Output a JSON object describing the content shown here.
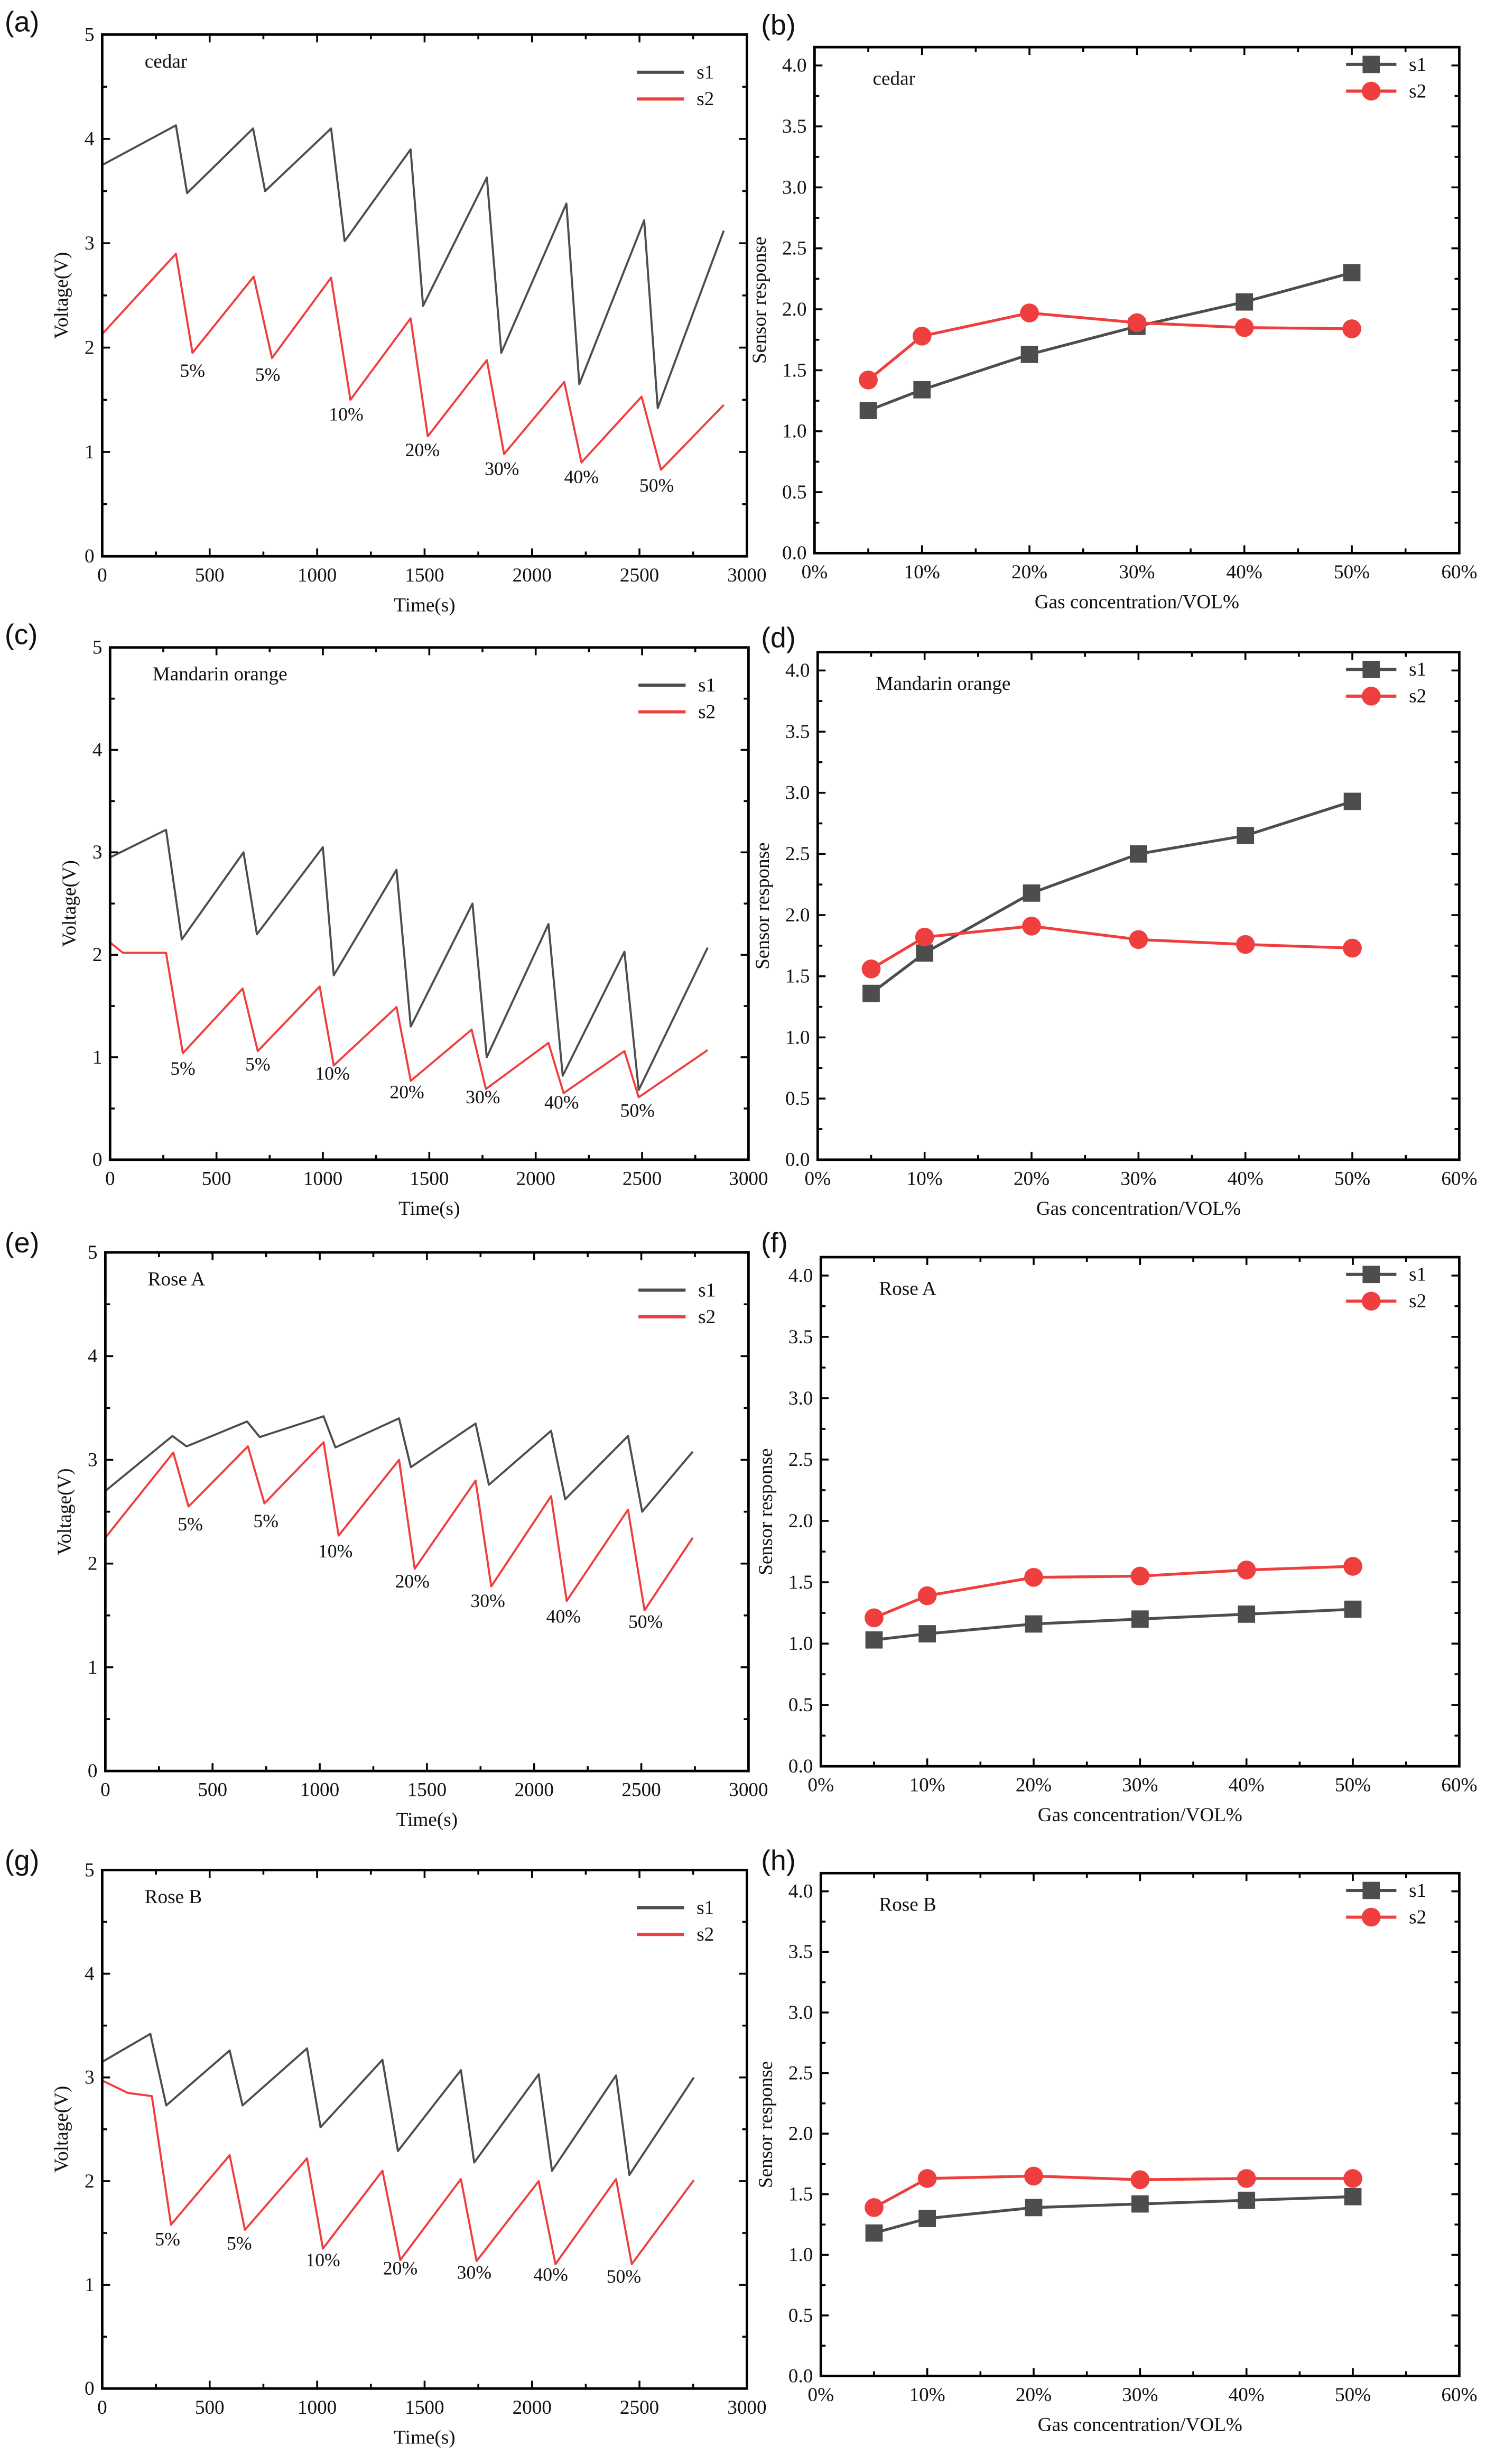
{
  "chart_data": [
    {
      "panel": "(a)",
      "type": "line",
      "annotation": "cedar",
      "xlabel": "Time(s)",
      "ylabel": "Voltage(V)",
      "xlim": [
        0,
        3000
      ],
      "ylim": [
        0,
        5
      ],
      "xticks": [
        "0",
        "500",
        "1000",
        "1500",
        "2000",
        "2500",
        "3000"
      ],
      "yticks": [
        "0",
        "1",
        "2",
        "3",
        "4",
        "5"
      ],
      "legend": "top-right",
      "series": [
        {
          "name": "s1",
          "color": "#4d4d4d",
          "points": [
            [
              0,
              3.75
            ],
            [
              343,
              4.13
            ],
            [
              395,
              3.48
            ],
            [
              702,
              4.1
            ],
            [
              758,
              3.5
            ],
            [
              1065,
              4.1
            ],
            [
              1128,
              3.02
            ],
            [
              1435,
              3.9
            ],
            [
              1493,
              2.4
            ],
            [
              1790,
              3.63
            ],
            [
              1857,
              1.95
            ],
            [
              2160,
              3.38
            ],
            [
              2220,
              1.65
            ],
            [
              2522,
              3.22
            ],
            [
              2585,
              1.42
            ],
            [
              2892,
              3.12
            ]
          ]
        },
        {
          "name": "s2",
          "color": "#ef3e3e",
          "points": [
            [
              0,
              2.13
            ],
            [
              343,
              2.9
            ],
            [
              420,
              1.95
            ],
            [
              705,
              2.68
            ],
            [
              790,
              1.9
            ],
            [
              1065,
              2.67
            ],
            [
              1155,
              1.5
            ],
            [
              1435,
              2.28
            ],
            [
              1515,
              1.15
            ],
            [
              1790,
              1.88
            ],
            [
              1870,
              0.98
            ],
            [
              2150,
              1.67
            ],
            [
              2230,
              0.9
            ],
            [
              2510,
              1.53
            ],
            [
              2600,
              0.83
            ],
            [
              2892,
              1.45
            ]
          ]
        }
      ],
      "labels": [
        {
          "text": "5%",
          "x": 420,
          "y": 1.72
        },
        {
          "text": "5%",
          "x": 770,
          "y": 1.68
        },
        {
          "text": "10%",
          "x": 1135,
          "y": 1.3
        },
        {
          "text": "20%",
          "x": 1490,
          "y": 0.96
        },
        {
          "text": "30%",
          "x": 1860,
          "y": 0.78
        },
        {
          "text": "40%",
          "x": 2230,
          "y": 0.7
        },
        {
          "text": "50%",
          "x": 2580,
          "y": 0.62
        }
      ]
    },
    {
      "panel": "(b)",
      "type": "line",
      "annotation": "cedar",
      "xlabel": "Gas concentration/VOL%",
      "ylabel": "Sensor response",
      "xlim": [
        0,
        60
      ],
      "ylim": [
        0,
        4.15
      ],
      "xticks": [
        "0%",
        "10%",
        "20%",
        "30%",
        "40%",
        "50%",
        "60%"
      ],
      "yticks": [
        "0.0",
        "0.5",
        "1.0",
        "1.5",
        "2.0",
        "2.5",
        "3.0",
        "3.5",
        "4.0"
      ],
      "legend": "top-right",
      "x": [
        5,
        10,
        20,
        30,
        40,
        50
      ],
      "series": [
        {
          "name": "s1",
          "color": "#4d4d4d",
          "marker": "square",
          "values": [
            1.17,
            1.34,
            1.63,
            1.86,
            2.06,
            2.3
          ]
        },
        {
          "name": "s2",
          "color": "#ef3e3e",
          "marker": "circle",
          "values": [
            1.42,
            1.78,
            1.97,
            1.89,
            1.85,
            1.84
          ]
        }
      ]
    },
    {
      "panel": "(c)",
      "type": "line",
      "annotation": "Mandarin orange",
      "xlabel": "Time(s)",
      "ylabel": "Voltage(V)",
      "xlim": [
        0,
        3000
      ],
      "ylim": [
        0,
        5
      ],
      "xticks": [
        "0",
        "500",
        "1000",
        "1500",
        "2000",
        "2500",
        "3000"
      ],
      "yticks": [
        "0",
        "1",
        "2",
        "3",
        "4",
        "5"
      ],
      "legend": "top-right",
      "series": [
        {
          "name": "s1",
          "color": "#4d4d4d",
          "points": [
            [
              0,
              2.95
            ],
            [
              263,
              3.22
            ],
            [
              337,
              2.15
            ],
            [
              627,
              3.0
            ],
            [
              690,
              2.2
            ],
            [
              1000,
              3.05
            ],
            [
              1051,
              1.8
            ],
            [
              1346,
              2.83
            ],
            [
              1413,
              1.3
            ],
            [
              1703,
              2.5
            ],
            [
              1770,
              1.0
            ],
            [
              2060,
              2.3
            ],
            [
              2127,
              0.82
            ],
            [
              2417,
              2.03
            ],
            [
              2484,
              0.68
            ],
            [
              2808,
              2.07
            ]
          ]
        },
        {
          "name": "s2",
          "color": "#ef3e3e",
          "points": [
            [
              0,
              2.12
            ],
            [
              60,
              2.02
            ],
            [
              263,
              2.02
            ],
            [
              342,
              1.04
            ],
            [
              623,
              1.67
            ],
            [
              694,
              1.06
            ],
            [
              985,
              1.69
            ],
            [
              1051,
              0.92
            ],
            [
              1346,
              1.49
            ],
            [
              1413,
              0.77
            ],
            [
              1699,
              1.27
            ],
            [
              1766,
              0.69
            ],
            [
              2060,
              1.14
            ],
            [
              2131,
              0.65
            ],
            [
              2417,
              1.06
            ],
            [
              2484,
              0.61
            ],
            [
              2808,
              1.07
            ]
          ]
        }
      ],
      "labels": [
        {
          "text": "5%",
          "x": 342,
          "y": 0.83
        },
        {
          "text": "5%",
          "x": 694,
          "y": 0.87
        },
        {
          "text": "10%",
          "x": 1045,
          "y": 0.78
        },
        {
          "text": "20%",
          "x": 1395,
          "y": 0.6
        },
        {
          "text": "30%",
          "x": 1752,
          "y": 0.55
        },
        {
          "text": "40%",
          "x": 2122,
          "y": 0.5
        },
        {
          "text": "50%",
          "x": 2478,
          "y": 0.42
        }
      ]
    },
    {
      "panel": "(d)",
      "type": "line",
      "annotation": "Mandarin orange",
      "xlabel": "Gas concentration/VOL%",
      "ylabel": "Sensor response",
      "xlim": [
        0,
        60
      ],
      "ylim": [
        0,
        4.15
      ],
      "xticks": [
        "0%",
        "10%",
        "20%",
        "30%",
        "40%",
        "50%",
        "60%"
      ],
      "yticks": [
        "0.0",
        "0.5",
        "1.0",
        "1.5",
        "2.0",
        "2.5",
        "3.0",
        "3.5",
        "4.0"
      ],
      "legend": "top-right",
      "x": [
        5,
        10,
        20,
        30,
        40,
        50
      ],
      "series": [
        {
          "name": "s1",
          "color": "#4d4d4d",
          "marker": "square",
          "values": [
            1.36,
            1.69,
            2.18,
            2.5,
            2.65,
            2.93
          ]
        },
        {
          "name": "s2",
          "color": "#ef3e3e",
          "marker": "circle",
          "values": [
            1.56,
            1.82,
            1.91,
            1.8,
            1.76,
            1.73
          ]
        }
      ]
    },
    {
      "panel": "(e)",
      "type": "line",
      "annotation": "Rose A",
      "xlabel": "Time(s)",
      "ylabel": "Voltage(V)",
      "xlim": [
        0,
        3000
      ],
      "ylim": [
        0,
        5
      ],
      "xticks": [
        "0",
        "500",
        "1000",
        "1500",
        "2000",
        "2500",
        "3000"
      ],
      "yticks": [
        "0",
        "1",
        "2",
        "3",
        "4",
        "5"
      ],
      "legend": "top-right",
      "series": [
        {
          "name": "s1",
          "color": "#4d4d4d",
          "points": [
            [
              0,
              2.7
            ],
            [
              313,
              3.23
            ],
            [
              379,
              3.13
            ],
            [
              661,
              3.37
            ],
            [
              720,
              3.22
            ],
            [
              1018,
              3.42
            ],
            [
              1073,
              3.12
            ],
            [
              1370,
              3.4
            ],
            [
              1425,
              2.93
            ],
            [
              1727,
              3.35
            ],
            [
              1789,
              2.76
            ],
            [
              2079,
              3.28
            ],
            [
              2145,
              2.62
            ],
            [
              2438,
              3.23
            ],
            [
              2504,
              2.5
            ],
            [
              2740,
              3.08
            ]
          ]
        },
        {
          "name": "s2",
          "color": "#ef3e3e",
          "points": [
            [
              0,
              2.25
            ],
            [
              317,
              3.07
            ],
            [
              388,
              2.55
            ],
            [
              665,
              3.13
            ],
            [
              742,
              2.58
            ],
            [
              1018,
              3.17
            ],
            [
              1088,
              2.27
            ],
            [
              1370,
              3.0
            ],
            [
              1443,
              1.95
            ],
            [
              1727,
              2.8
            ],
            [
              1800,
              1.78
            ],
            [
              2079,
              2.65
            ],
            [
              2152,
              1.64
            ],
            [
              2438,
              2.52
            ],
            [
              2515,
              1.55
            ],
            [
              2740,
              2.25
            ]
          ]
        }
      ],
      "labels": [
        {
          "text": "5%",
          "x": 396,
          "y": 2.32
        },
        {
          "text": "5%",
          "x": 749,
          "y": 2.35
        },
        {
          "text": "10%",
          "x": 1073,
          "y": 2.06
        },
        {
          "text": "20%",
          "x": 1432,
          "y": 1.77
        },
        {
          "text": "30%",
          "x": 1784,
          "y": 1.58
        },
        {
          "text": "40%",
          "x": 2137,
          "y": 1.43
        },
        {
          "text": "50%",
          "x": 2520,
          "y": 1.38
        }
      ]
    },
    {
      "panel": "(f)",
      "type": "line",
      "annotation": "Rose A",
      "xlabel": "Gas concentration/VOL%",
      "ylabel": "Sensor response",
      "xlim": [
        0,
        60
      ],
      "ylim": [
        0,
        4.15
      ],
      "xticks": [
        "0%",
        "10%",
        "20%",
        "30%",
        "40%",
        "50%",
        "60%"
      ],
      "yticks": [
        "0.0",
        "0.5",
        "1.0",
        "1.5",
        "2.0",
        "2.5",
        "3.0",
        "3.5",
        "4.0"
      ],
      "legend": "top-right",
      "x": [
        5,
        10,
        20,
        30,
        40,
        50
      ],
      "series": [
        {
          "name": "s1",
          "color": "#4d4d4d",
          "marker": "square",
          "values": [
            1.03,
            1.08,
            1.16,
            1.2,
            1.24,
            1.28
          ]
        },
        {
          "name": "s2",
          "color": "#ef3e3e",
          "marker": "circle",
          "values": [
            1.21,
            1.39,
            1.54,
            1.55,
            1.6,
            1.63
          ]
        }
      ]
    },
    {
      "panel": "(g)",
      "type": "line",
      "annotation": "Rose B",
      "xlabel": "Time(s)",
      "ylabel": "Voltage(V)",
      "xlim": [
        0,
        3000
      ],
      "ylim": [
        0,
        5
      ],
      "xticks": [
        "0",
        "500",
        "1000",
        "1500",
        "2000",
        "2500",
        "3000"
      ],
      "yticks": [
        "0",
        "1",
        "2",
        "3",
        "4",
        "5"
      ],
      "legend": "top-right",
      "series": [
        {
          "name": "s1",
          "color": "#4d4d4d",
          "points": [
            [
              0,
              3.15
            ],
            [
              224,
              3.42
            ],
            [
              298,
              2.73
            ],
            [
              593,
              3.26
            ],
            [
              653,
              2.73
            ],
            [
              953,
              3.28
            ],
            [
              1016,
              2.52
            ],
            [
              1304,
              3.17
            ],
            [
              1376,
              2.29
            ],
            [
              1669,
              3.07
            ],
            [
              1731,
              2.18
            ],
            [
              2031,
              3.03
            ],
            [
              2093,
              2.1
            ],
            [
              2391,
              3.02
            ],
            [
              2453,
              2.06
            ],
            [
              2753,
              3.0
            ]
          ]
        },
        {
          "name": "s2",
          "color": "#ef3e3e",
          "points": [
            [
              0,
              2.97
            ],
            [
              120,
              2.85
            ],
            [
              231,
              2.82
            ],
            [
              320,
              1.58
            ],
            [
              593,
              2.25
            ],
            [
              664,
              1.53
            ],
            [
              953,
              2.22
            ],
            [
              1027,
              1.35
            ],
            [
              1304,
              2.1
            ],
            [
              1387,
              1.24
            ],
            [
              1669,
              2.02
            ],
            [
              1742,
              1.23
            ],
            [
              2031,
              2.0
            ],
            [
              2109,
              1.2
            ],
            [
              2391,
              2.02
            ],
            [
              2464,
              1.2
            ],
            [
              2753,
              2.01
            ]
          ]
        }
      ],
      "labels": [
        {
          "text": "5%",
          "x": 304,
          "y": 1.38
        },
        {
          "text": "5%",
          "x": 638,
          "y": 1.34
        },
        {
          "text": "10%",
          "x": 1027,
          "y": 1.18
        },
        {
          "text": "20%",
          "x": 1387,
          "y": 1.1
        },
        {
          "text": "30%",
          "x": 1731,
          "y": 1.06
        },
        {
          "text": "40%",
          "x": 2087,
          "y": 1.04
        },
        {
          "text": "50%",
          "x": 2427,
          "y": 1.02
        }
      ]
    },
    {
      "panel": "(h)",
      "type": "line",
      "annotation": "Rose B",
      "xlabel": "Gas concentration/VOL%",
      "ylabel": "Sensor response",
      "xlim": [
        0,
        60
      ],
      "ylim": [
        0,
        4.15
      ],
      "xticks": [
        "0%",
        "10%",
        "20%",
        "30%",
        "40%",
        "50%",
        "60%"
      ],
      "yticks": [
        "0.0",
        "0.5",
        "1.0",
        "1.5",
        "2.0",
        "2.5",
        "3.0",
        "3.5",
        "4.0"
      ],
      "legend": "top-right",
      "x": [
        5,
        10,
        20,
        30,
        40,
        50
      ],
      "series": [
        {
          "name": "s1",
          "color": "#4d4d4d",
          "marker": "square",
          "values": [
            1.18,
            1.3,
            1.39,
            1.42,
            1.45,
            1.48
          ]
        },
        {
          "name": "s2",
          "color": "#ef3e3e",
          "marker": "circle",
          "values": [
            1.39,
            1.63,
            1.65,
            1.62,
            1.63,
            1.63
          ]
        }
      ]
    }
  ]
}
